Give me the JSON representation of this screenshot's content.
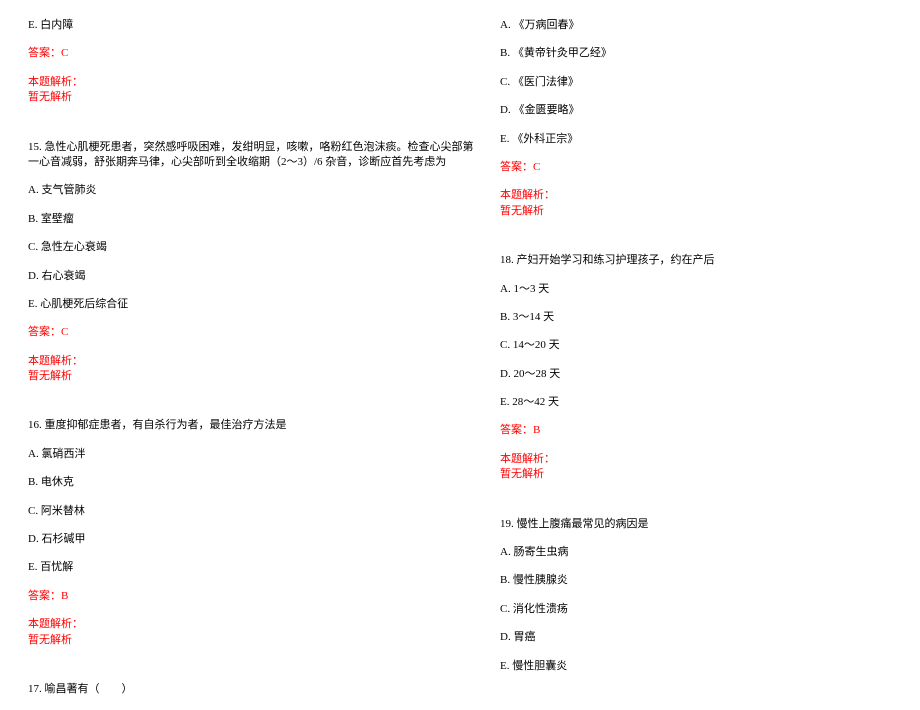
{
  "colors": {
    "text": "#000000",
    "answer": "#ff0000",
    "background": "#ffffff"
  },
  "typography": {
    "font_family": "SimSun, 宋体, serif",
    "font_size": 11,
    "line_spacing": 13
  },
  "left_column": {
    "q14_tail": {
      "option_e": "E. 白内障",
      "answer": "答案：C",
      "analysis_label": "本题解析：",
      "analysis_text": "暂无解析"
    },
    "q15": {
      "stem": "15. 急性心肌梗死患者，突然感呼吸困难，发绀明显，咳嗽，咯粉红色泡沫痰。检查心尖部第一心音减弱，舒张期奔马律，心尖部听到全收缩期（2～3）/6 杂音，诊断应首先考虑为",
      "option_a": "A. 支气管肺炎",
      "option_b": "B. 室壁瘤",
      "option_c": "C. 急性左心衰竭",
      "option_d": "D. 右心衰竭",
      "option_e": "E. 心肌梗死后综合征",
      "answer": "答案：C",
      "analysis_label": "本题解析：",
      "analysis_text": "暂无解析"
    },
    "q16": {
      "stem": "16. 重度抑郁症患者，有自杀行为者，最佳治疗方法是",
      "option_a": "A. 氯硝西泮",
      "option_b": "B. 电休克",
      "option_c": "C. 阿米替林",
      "option_d": "D. 石杉碱甲",
      "option_e": "E. 百忧解",
      "answer": "答案：B",
      "analysis_label": "本题解析：",
      "analysis_text": "暂无解析"
    },
    "q17": {
      "stem": "17. 喻昌著有（　　）"
    }
  },
  "right_column": {
    "q17_options": {
      "option_a": "A. 《万病回春》",
      "option_b": "B. 《黄帝针灸甲乙经》",
      "option_c": "C. 《医门法律》",
      "option_d": "D. 《金匮要略》",
      "option_e": "E. 《外科正宗》",
      "answer": "答案：C",
      "analysis_label": "本题解析：",
      "analysis_text": "暂无解析"
    },
    "q18": {
      "stem": "18. 产妇开始学习和练习护理孩子，约在产后",
      "option_a": "A. 1～3 天",
      "option_b": "B. 3～14 天",
      "option_c": "C. 14～20 天",
      "option_d": "D. 20～28 天",
      "option_e": "E. 28～42 天",
      "answer": "答案：B",
      "analysis_label": "本题解析：",
      "analysis_text": "暂无解析"
    },
    "q19": {
      "stem": "19. 慢性上腹痛最常见的病因是",
      "option_a": "A. 肠寄生虫病",
      "option_b": "B. 慢性胰腺炎",
      "option_c": "C. 消化性溃疡",
      "option_d": "D. 胃癌",
      "option_e": "E. 慢性胆囊炎"
    }
  }
}
